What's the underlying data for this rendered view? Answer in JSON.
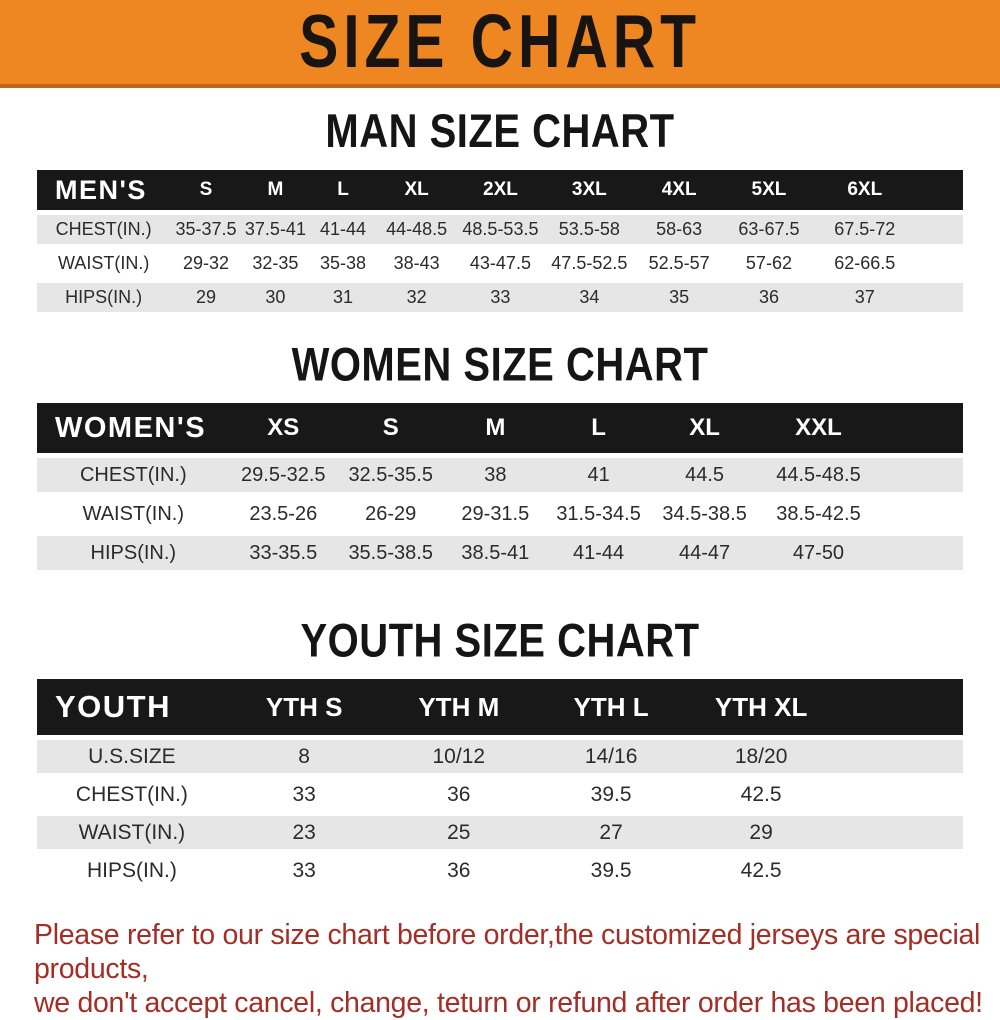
{
  "banner": {
    "title": "SIZE CHART"
  },
  "sections": [
    {
      "title": "MAN SIZE CHART",
      "table": {
        "header_label": "MEN'S",
        "columns": [
          "S",
          "M",
          "L",
          "XL",
          "2XL",
          "3XL",
          "4XL",
          "5XL",
          "6XL"
        ],
        "rows": [
          {
            "label": "CHEST(IN.)",
            "values": [
              "35-37.5",
              "37.5-41",
              "41-44",
              "44-48.5",
              "48.5-53.5",
              "53.5-58",
              "58-63",
              "63-67.5",
              "67.5-72"
            ]
          },
          {
            "label": "WAIST(IN.)",
            "values": [
              "29-32",
              "32-35",
              "35-38",
              "38-43",
              "43-47.5",
              "47.5-52.5",
              "52.5-57",
              "57-62",
              "62-66.5"
            ]
          },
          {
            "label": "HIPS(IN.)",
            "values": [
              "29",
              "30",
              "31",
              "32",
              "33",
              "34",
              "35",
              "36",
              "37"
            ]
          }
        ]
      }
    },
    {
      "title": "WOMEN SIZE CHART",
      "table": {
        "header_label": "WOMEN'S",
        "columns": [
          "XS",
          "S",
          "M",
          "L",
          "XL",
          "XXL"
        ],
        "rows": [
          {
            "label": "CHEST(IN.)",
            "values": [
              "29.5-32.5",
              "32.5-35.5",
              "38",
              "41",
              "44.5",
              "44.5-48.5"
            ]
          },
          {
            "label": "WAIST(IN.)",
            "values": [
              "23.5-26",
              "26-29",
              "29-31.5",
              "31.5-34.5",
              "34.5-38.5",
              "38.5-42.5"
            ]
          },
          {
            "label": "HIPS(IN.)",
            "values": [
              "33-35.5",
              "35.5-38.5",
              "38.5-41",
              "41-44",
              "44-47",
              "47-50"
            ]
          }
        ]
      }
    },
    {
      "title": "YOUTH SIZE CHART",
      "table": {
        "header_label": "YOUTH",
        "columns": [
          "YTH S",
          "YTH M",
          "YTH L",
          "YTH XL"
        ],
        "rows": [
          {
            "label": "U.S.SIZE",
            "values": [
              "8",
              "10/12",
              "14/16",
              "18/20"
            ]
          },
          {
            "label": "CHEST(IN.)",
            "values": [
              "33",
              "36",
              "39.5",
              "42.5"
            ]
          },
          {
            "label": "WAIST(IN.)",
            "values": [
              "23",
              "25",
              "27",
              "29"
            ]
          },
          {
            "label": "HIPS(IN.)",
            "values": [
              "33",
              "36",
              "39.5",
              "42.5"
            ]
          }
        ]
      }
    }
  ],
  "footer": {
    "lines": [
      "Please refer to our size chart before order,the customized jerseys are special products,",
      "we don't accept cancel, change, teturn or refund after order has been placed!"
    ]
  },
  "colors": {
    "banner_orange": "#ee8722",
    "banner_border": "#c2641e",
    "header_black": "#181818",
    "row_gray": "#e5e6e5",
    "text_dark": "#2b2b2b",
    "footer_red": "#a32e26"
  }
}
